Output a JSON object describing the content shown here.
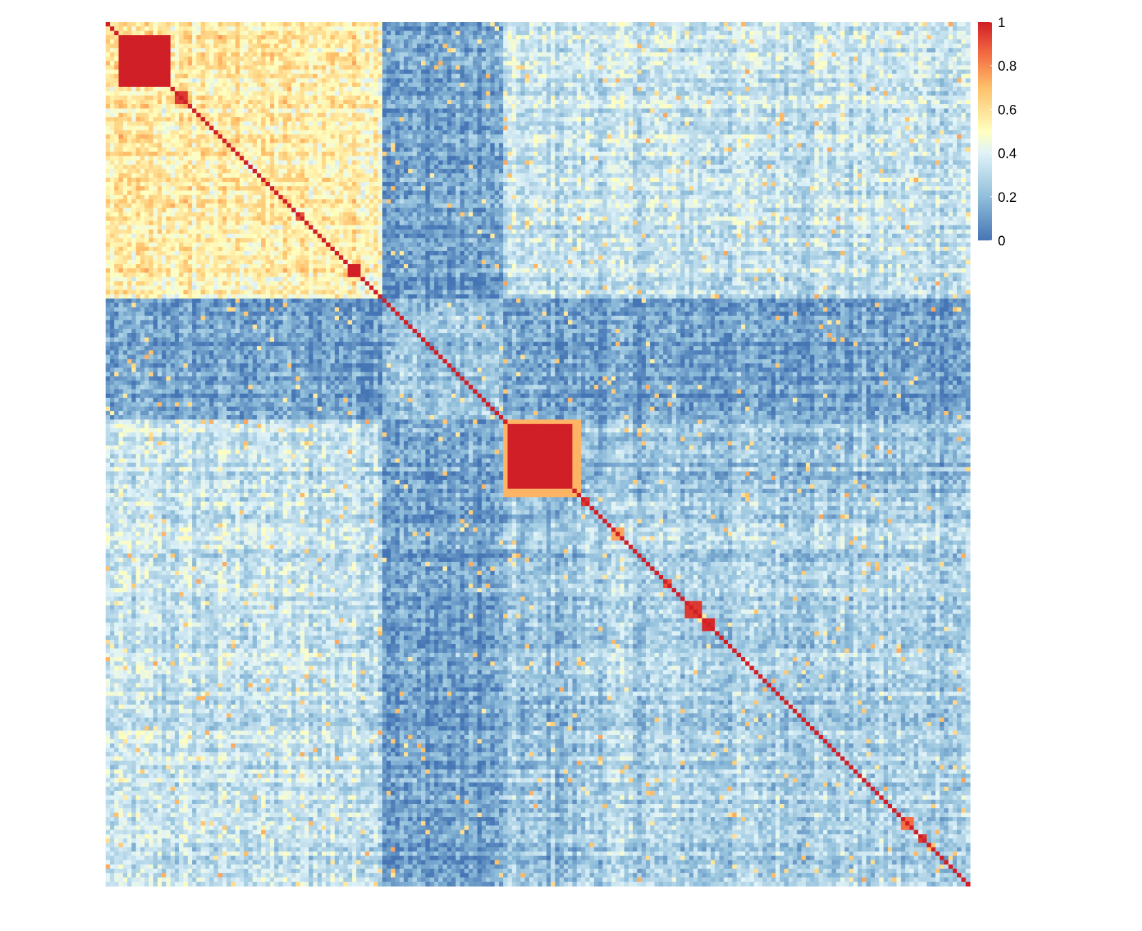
{
  "chart_data": {
    "type": "heatmap",
    "title": "",
    "xlabel": "",
    "ylabel": "",
    "n": 200,
    "value_range": [
      0,
      1
    ],
    "colorscale": {
      "stops": [
        {
          "value": 0.0,
          "color": "#4575B4"
        },
        {
          "value": 0.2,
          "color": "#91BFDB"
        },
        {
          "value": 0.4,
          "color": "#E0F3F8"
        },
        {
          "value": 0.5,
          "color": "#FFFFBF"
        },
        {
          "value": 0.7,
          "color": "#FEC06A"
        },
        {
          "value": 0.85,
          "color": "#F46D43"
        },
        {
          "value": 1.0,
          "color": "#D01F26"
        }
      ]
    },
    "legend": {
      "position": "top-right",
      "ticks": [
        {
          "value": 1,
          "label": "1"
        },
        {
          "value": 0.8,
          "label": "0.8"
        },
        {
          "value": 0.6,
          "label": "0.6"
        },
        {
          "value": 0.4,
          "label": "0.4"
        },
        {
          "value": 0.2,
          "label": "0.2"
        },
        {
          "value": 0,
          "label": "0"
        }
      ]
    },
    "groups": [
      {
        "start": 0,
        "end": 64,
        "within": 0.55,
        "base": 0.45,
        "dark": false
      },
      {
        "start": 64,
        "end": 92,
        "within": 0.22,
        "base": 0.14,
        "dark": true
      },
      {
        "start": 92,
        "end": 110,
        "within": 0.33,
        "base": 0.22,
        "dark": false
      },
      {
        "start": 110,
        "end": 200,
        "within": 0.27,
        "base": 0.22,
        "dark": false
      }
    ],
    "blocks": [
      {
        "start": 3,
        "end": 15,
        "value": 1.0
      },
      {
        "start": 16,
        "end": 19,
        "value": 0.95
      },
      {
        "start": 44,
        "end": 46,
        "value": 0.9
      },
      {
        "start": 56,
        "end": 59,
        "value": 1.0
      },
      {
        "start": 93,
        "end": 108,
        "value": 1.0
      },
      {
        "start": 92,
        "end": 110,
        "value": 0.72
      },
      {
        "start": 110,
        "end": 112,
        "value": 0.95
      },
      {
        "start": 117,
        "end": 120,
        "value": 0.75
      },
      {
        "start": 129,
        "end": 131,
        "value": 0.9
      },
      {
        "start": 134,
        "end": 138,
        "value": 0.95
      },
      {
        "start": 138,
        "end": 141,
        "value": 0.98
      },
      {
        "start": 184,
        "end": 187,
        "value": 0.85
      },
      {
        "start": 188,
        "end": 190,
        "value": 0.95
      }
    ]
  }
}
